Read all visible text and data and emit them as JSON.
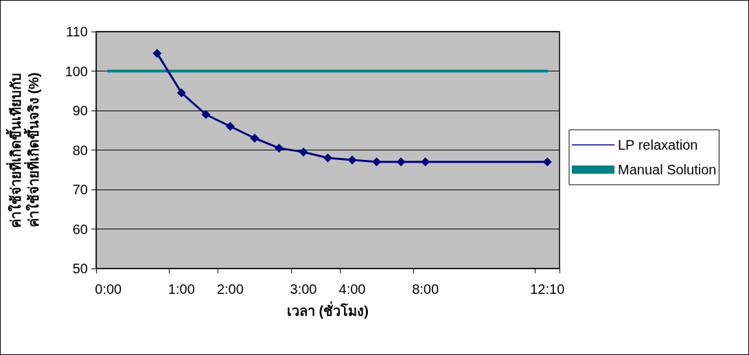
{
  "chart_data": {
    "type": "line",
    "xlabel": "เวลา (ชั่วโมง)",
    "ylabel": "ค่าใช้จ่ายที่เกิดขึ้นเทียบกับ\nค่าใช้จ่ายที่เกิดขึ้นจริง (%)",
    "categories": [
      "0:00",
      null,
      null,
      "1:00",
      null,
      "2:00",
      null,
      null,
      "3:00",
      null,
      "4:00",
      null,
      null,
      "8:00",
      null,
      null,
      null,
      null,
      "12:10"
    ],
    "series": [
      {
        "name": "LP relaxation",
        "color": "#000080",
        "marker": "diamond",
        "values": [
          null,
          null,
          104.5,
          94.5,
          89,
          86,
          83,
          80.5,
          79.5,
          78,
          77.5,
          77,
          77,
          77,
          null,
          null,
          null,
          null,
          77
        ]
      },
      {
        "name": "Manual Solution",
        "color": "#008080",
        "marker": "none",
        "values": [
          100,
          100,
          100,
          100,
          100,
          100,
          100,
          100,
          100,
          100,
          100,
          100,
          100,
          100,
          100,
          100,
          100,
          100,
          100
        ]
      }
    ],
    "ylim": [
      50,
      110
    ],
    "yticks": [
      50,
      60,
      70,
      80,
      90,
      100,
      110
    ],
    "grid": "y",
    "legend": "right"
  }
}
